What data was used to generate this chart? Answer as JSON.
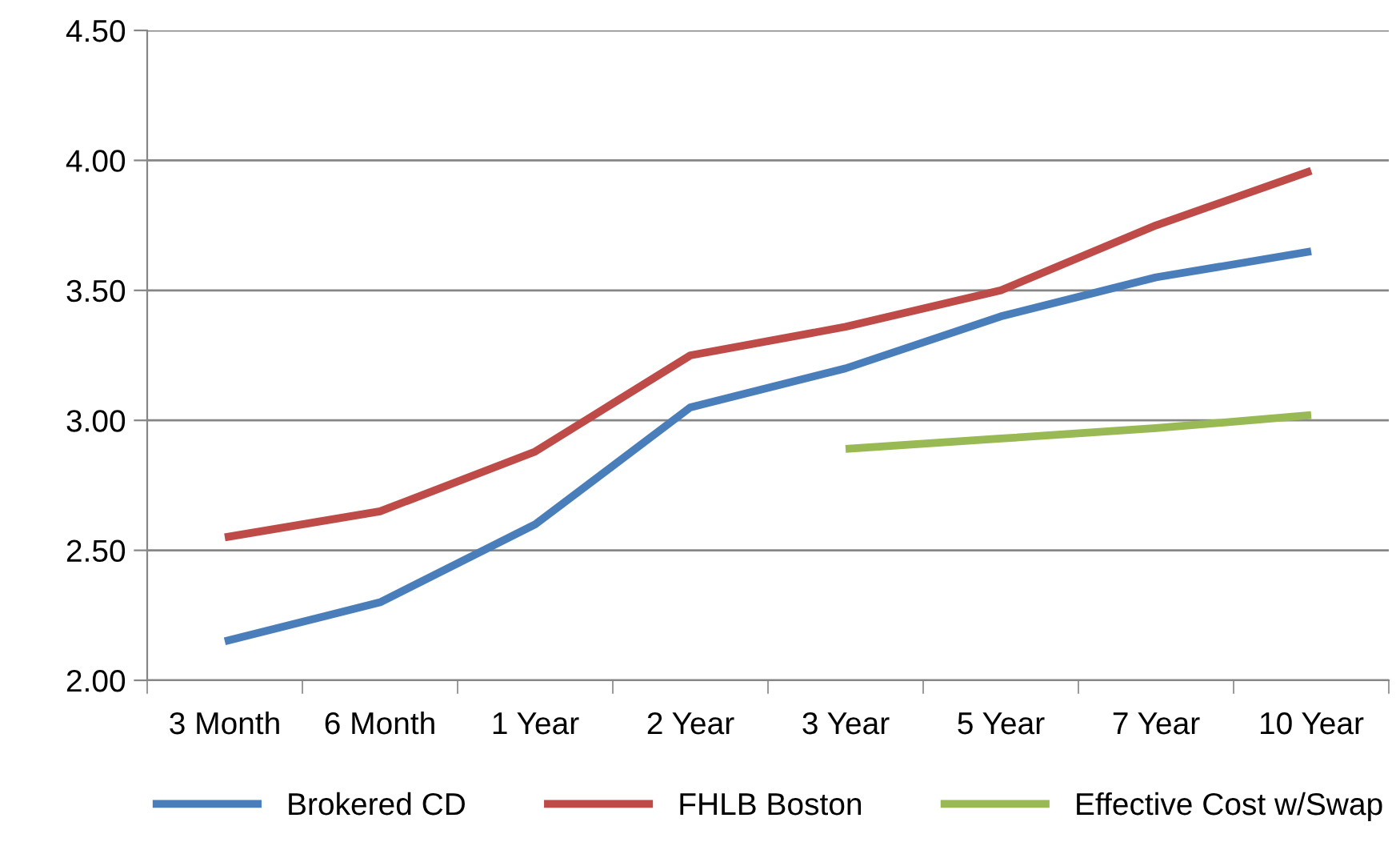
{
  "chart_data": {
    "type": "line",
    "categories": [
      "3 Month",
      "6 Month",
      "1 Year",
      "2 Year",
      "3 Year",
      "5 Year",
      "7 Year",
      "10 Year"
    ],
    "series": [
      {
        "name": "Brokered CD",
        "color": "#4a7ebb",
        "values": [
          2.15,
          2.3,
          2.6,
          3.05,
          3.2,
          3.4,
          3.55,
          3.65
        ]
      },
      {
        "name": "FHLB Boston",
        "color": "#be4b48",
        "values": [
          2.55,
          2.65,
          2.88,
          3.25,
          3.36,
          3.5,
          3.75,
          3.96
        ]
      },
      {
        "name": "Effective Cost w/Swap",
        "color": "#98b954",
        "values": [
          null,
          null,
          null,
          null,
          2.89,
          2.93,
          2.97,
          3.02
        ]
      }
    ],
    "ylim": [
      2.0,
      4.5
    ],
    "yticks": [
      {
        "value": 2.0,
        "label": "2.00"
      },
      {
        "value": 2.5,
        "label": "2.50"
      },
      {
        "value": 3.0,
        "label": "3.00"
      },
      {
        "value": 3.5,
        "label": "3.50"
      },
      {
        "value": 4.0,
        "label": "4.00"
      },
      {
        "value": 4.5,
        "label": "4.50"
      }
    ],
    "grid": "y",
    "legend": "bottom",
    "marker": "none",
    "line_style": "solid"
  }
}
